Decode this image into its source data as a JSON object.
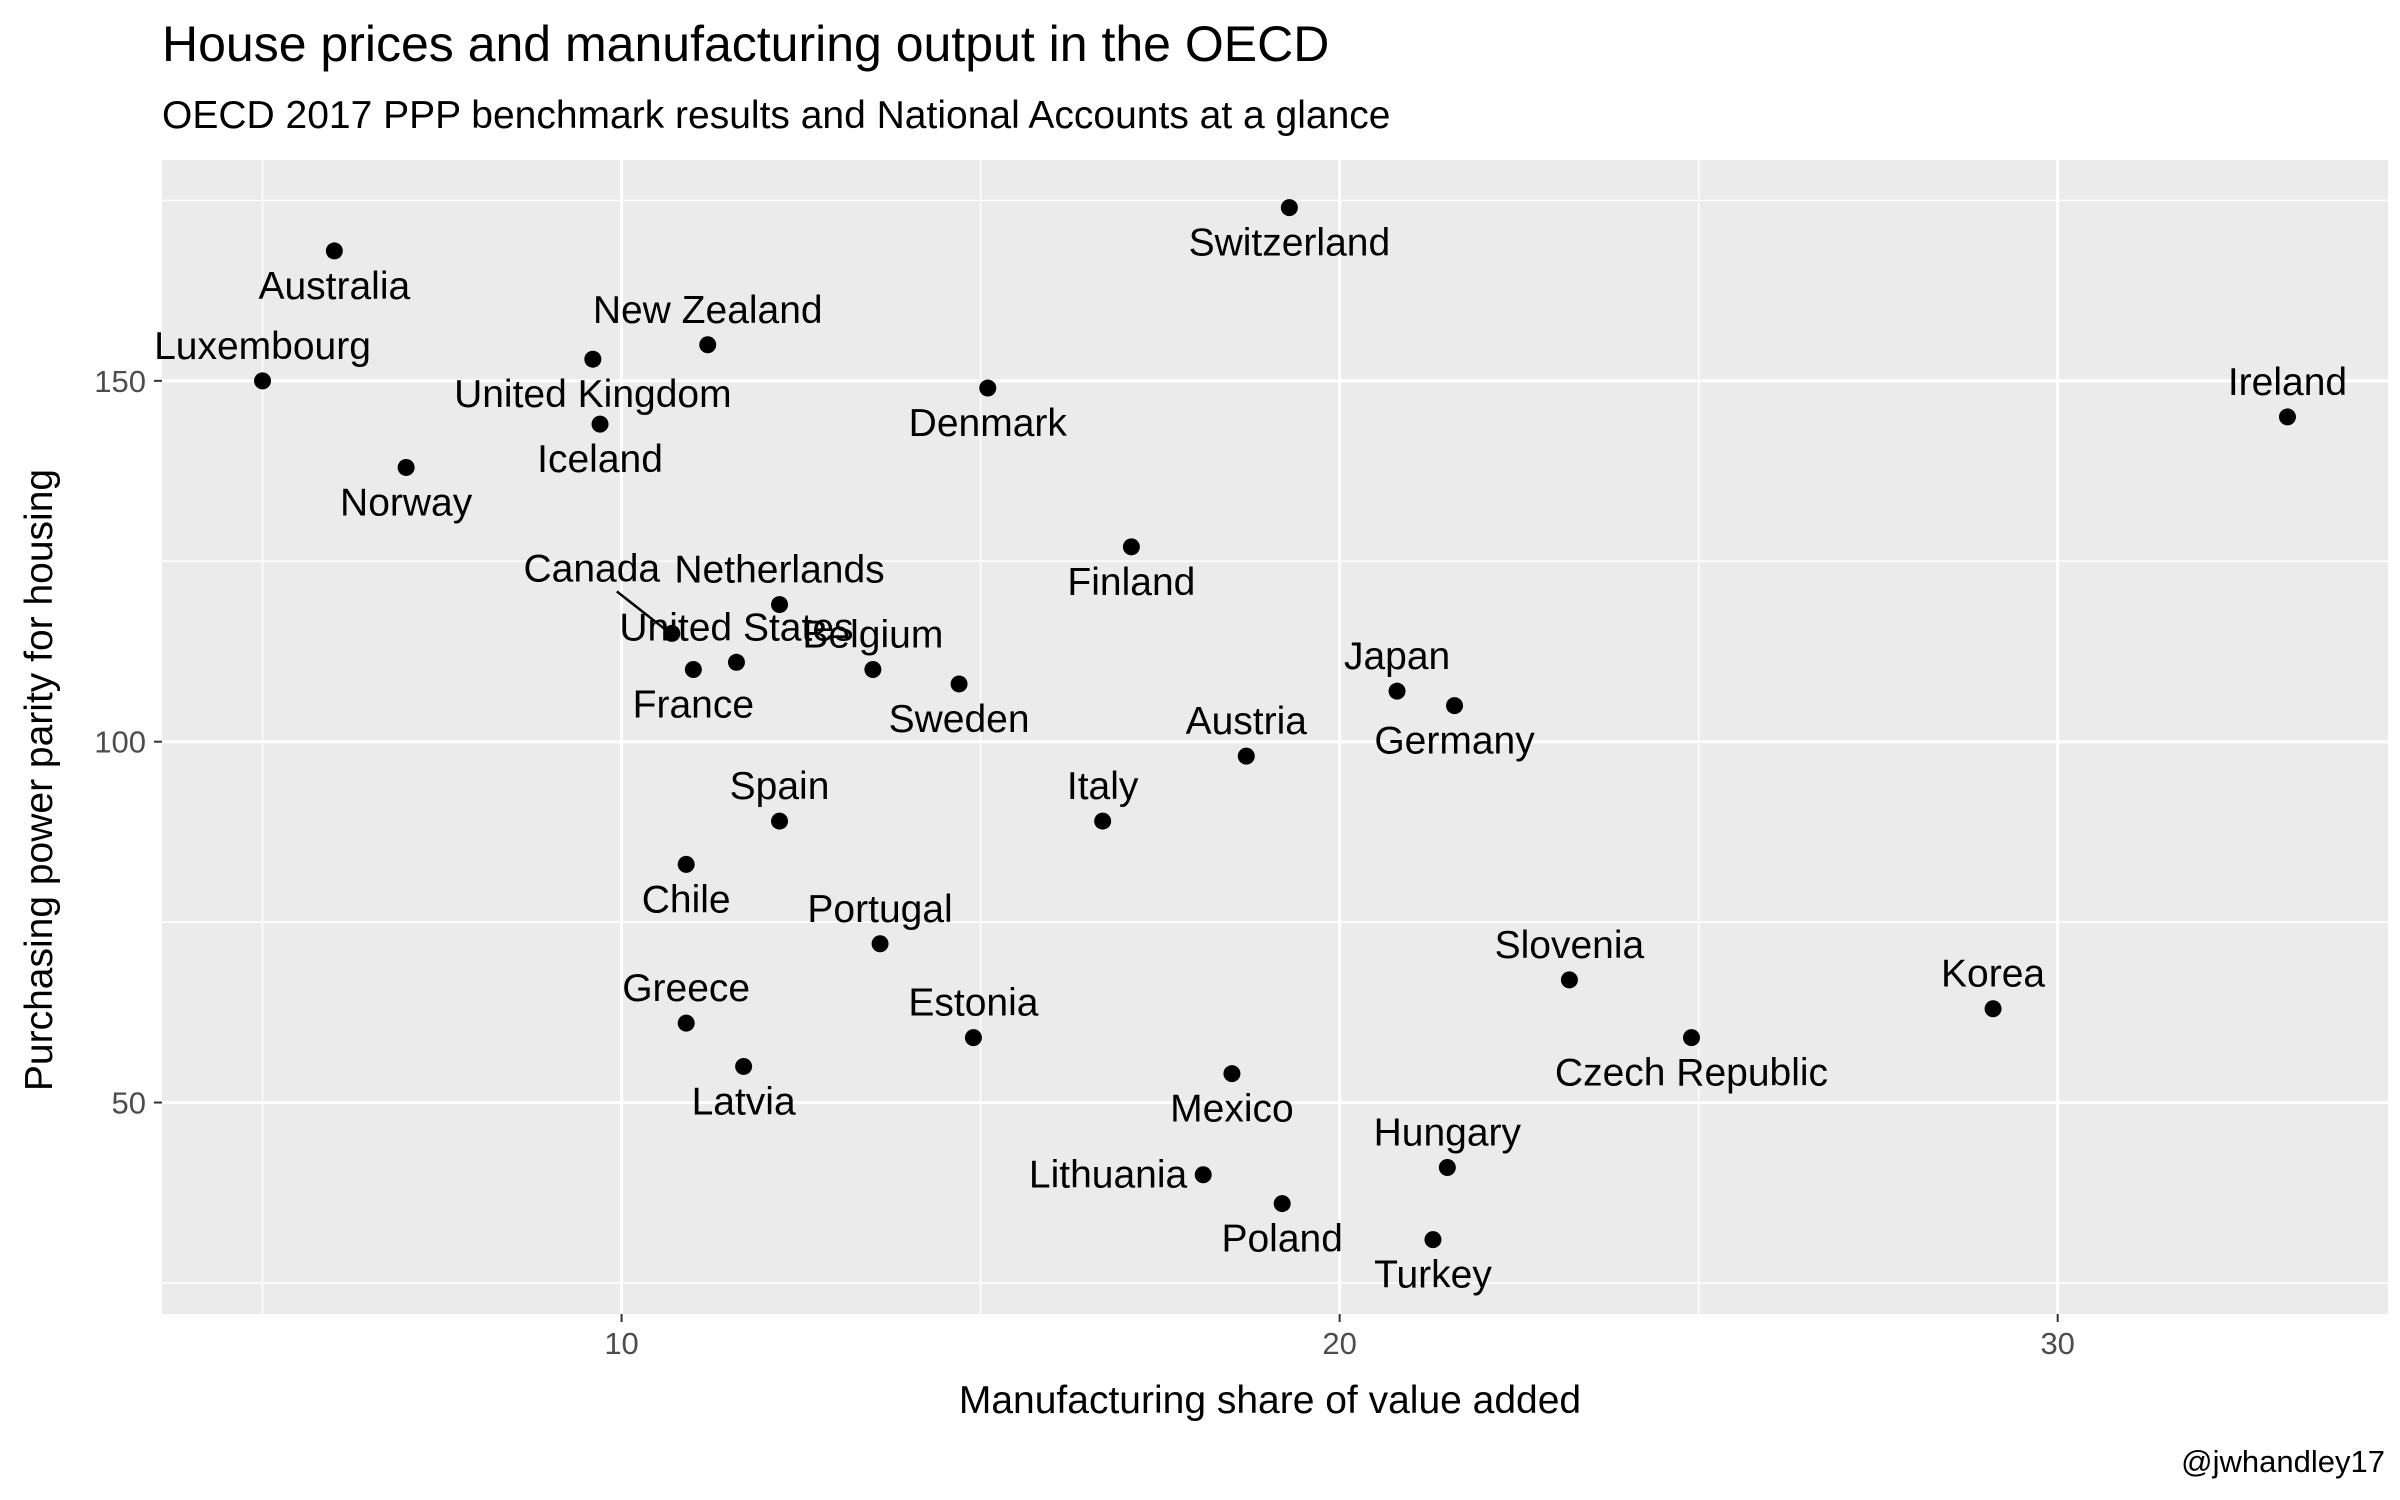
{
  "chart_data": {
    "type": "scatter",
    "title": "House prices and manufacturing output in the OECD",
    "subtitle": "OECD 2017 PPP benchmark results and National Accounts at a glance",
    "xlabel": "Manufacturing share of value added",
    "ylabel": "Purchasing power parity for housing",
    "caption": "@jwhandley17",
    "xlim": [
      3.6,
      34.6
    ],
    "ylim": [
      20.7,
      180.6
    ],
    "x_ticks": [
      10,
      20,
      30
    ],
    "y_ticks": [
      50,
      100,
      150
    ],
    "grid": true,
    "legend": "none",
    "colors": {
      "panel": "#ebebeb",
      "grid": "#ffffff",
      "point": "#000000",
      "text": "#000000",
      "tick_text": "#4d4d4d"
    },
    "points": [
      {
        "label": "Switzerland",
        "x": 19.3,
        "y": 174,
        "label_pos": "below"
      },
      {
        "label": "Australia",
        "x": 6.0,
        "y": 168,
        "label_pos": "below"
      },
      {
        "label": "New Zealand",
        "x": 11.2,
        "y": 155,
        "label_pos": "above"
      },
      {
        "label": "Luxembourg",
        "x": 5.0,
        "y": 150,
        "label_pos": "above"
      },
      {
        "label": "United Kingdom",
        "x": 9.6,
        "y": 153,
        "label_pos": "below"
      },
      {
        "label": "Denmark",
        "x": 15.1,
        "y": 149,
        "label_pos": "below"
      },
      {
        "label": "Iceland",
        "x": 9.7,
        "y": 144,
        "label_pos": "below"
      },
      {
        "label": "Ireland",
        "x": 33.2,
        "y": 145,
        "label_pos": "above"
      },
      {
        "label": "Norway",
        "x": 7.0,
        "y": 138,
        "label_pos": "below"
      },
      {
        "label": "Finland",
        "x": 17.1,
        "y": 127,
        "label_pos": "below"
      },
      {
        "label": "Netherlands",
        "x": 12.2,
        "y": 119,
        "label_pos": "above"
      },
      {
        "label": "Canada",
        "x": 10.7,
        "y": 115,
        "label_pos": "leader"
      },
      {
        "label": "United States",
        "x": 11.6,
        "y": 111,
        "label_pos": "above"
      },
      {
        "label": "France",
        "x": 11.0,
        "y": 110,
        "label_pos": "below"
      },
      {
        "label": "Belgium",
        "x": 13.5,
        "y": 110,
        "label_pos": "above"
      },
      {
        "label": "Sweden",
        "x": 14.7,
        "y": 108,
        "label_pos": "below"
      },
      {
        "label": "Japan",
        "x": 20.8,
        "y": 107,
        "label_pos": "above"
      },
      {
        "label": "Germany",
        "x": 21.6,
        "y": 105,
        "label_pos": "below"
      },
      {
        "label": "Austria",
        "x": 18.7,
        "y": 98,
        "label_pos": "above"
      },
      {
        "label": "Spain",
        "x": 12.2,
        "y": 89,
        "label_pos": "above"
      },
      {
        "label": "Italy",
        "x": 16.7,
        "y": 89,
        "label_pos": "above"
      },
      {
        "label": "Chile",
        "x": 10.9,
        "y": 83,
        "label_pos": "below"
      },
      {
        "label": "Portugal",
        "x": 13.6,
        "y": 72,
        "label_pos": "above"
      },
      {
        "label": "Slovenia",
        "x": 23.2,
        "y": 67,
        "label_pos": "above"
      },
      {
        "label": "Korea",
        "x": 29.1,
        "y": 63,
        "label_pos": "above"
      },
      {
        "label": "Greece",
        "x": 10.9,
        "y": 61,
        "label_pos": "above"
      },
      {
        "label": "Estonia",
        "x": 14.9,
        "y": 59,
        "label_pos": "above"
      },
      {
        "label": "Czech Republic",
        "x": 24.9,
        "y": 59,
        "label_pos": "below"
      },
      {
        "label": "Latvia",
        "x": 11.7,
        "y": 55,
        "label_pos": "below"
      },
      {
        "label": "Mexico",
        "x": 18.5,
        "y": 54,
        "label_pos": "below"
      },
      {
        "label": "Hungary",
        "x": 21.5,
        "y": 41,
        "label_pos": "above"
      },
      {
        "label": "Lithuania",
        "x": 18.1,
        "y": 40,
        "label_pos": "left"
      },
      {
        "label": "Poland",
        "x": 19.2,
        "y": 36,
        "label_pos": "below"
      },
      {
        "label": "Turkey",
        "x": 21.3,
        "y": 31,
        "label_pos": "below"
      }
    ]
  }
}
